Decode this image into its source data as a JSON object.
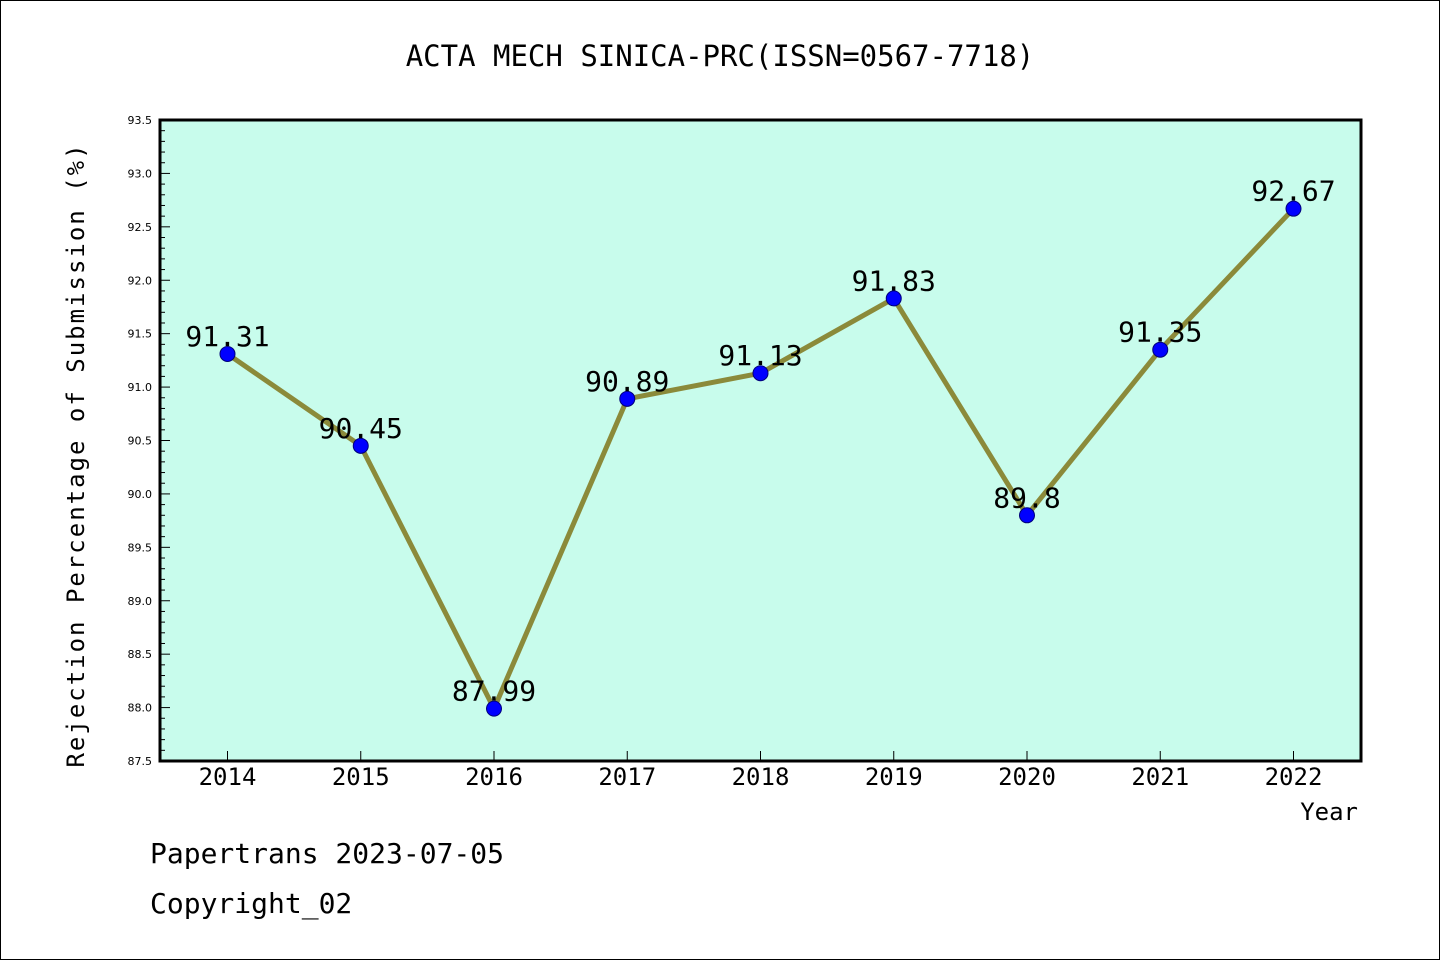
{
  "chart_data": {
    "type": "line",
    "title": "ACTA MECH SINICA-PRC(ISSN=0567-7718)",
    "xlabel": "Year",
    "ylabel": "Rejection Percentage of Submission (%)",
    "categories": [
      "2014",
      "2015",
      "2016",
      "2017",
      "2018",
      "2019",
      "2020",
      "2021",
      "2022"
    ],
    "series": [
      {
        "values": [
          91.31,
          90.45,
          87.99,
          90.89,
          91.13,
          91.83,
          89.8,
          91.35,
          92.67
        ],
        "data_labels": [
          "91.31",
          "90.45",
          "87.99",
          "90.89",
          "91.13",
          "91.83",
          "89.8",
          "91.35",
          "92.67"
        ]
      }
    ],
    "ylim": [
      87.5,
      93.5
    ],
    "yticks": [
      "87.5",
      "88.0",
      "88.5",
      "89.0",
      "89.5",
      "90.0",
      "90.5",
      "91.0",
      "91.5",
      "92.0",
      "92.5",
      "93.0",
      "93.5"
    ],
    "grid": false,
    "colors": {
      "plot_background": "#c8fcec",
      "line": "#8b8a3a",
      "marker": "#0000ff",
      "text": "#000000"
    }
  },
  "footer": {
    "line1": "Papertrans 2023-07-05",
    "line2": "Copyright_02"
  }
}
